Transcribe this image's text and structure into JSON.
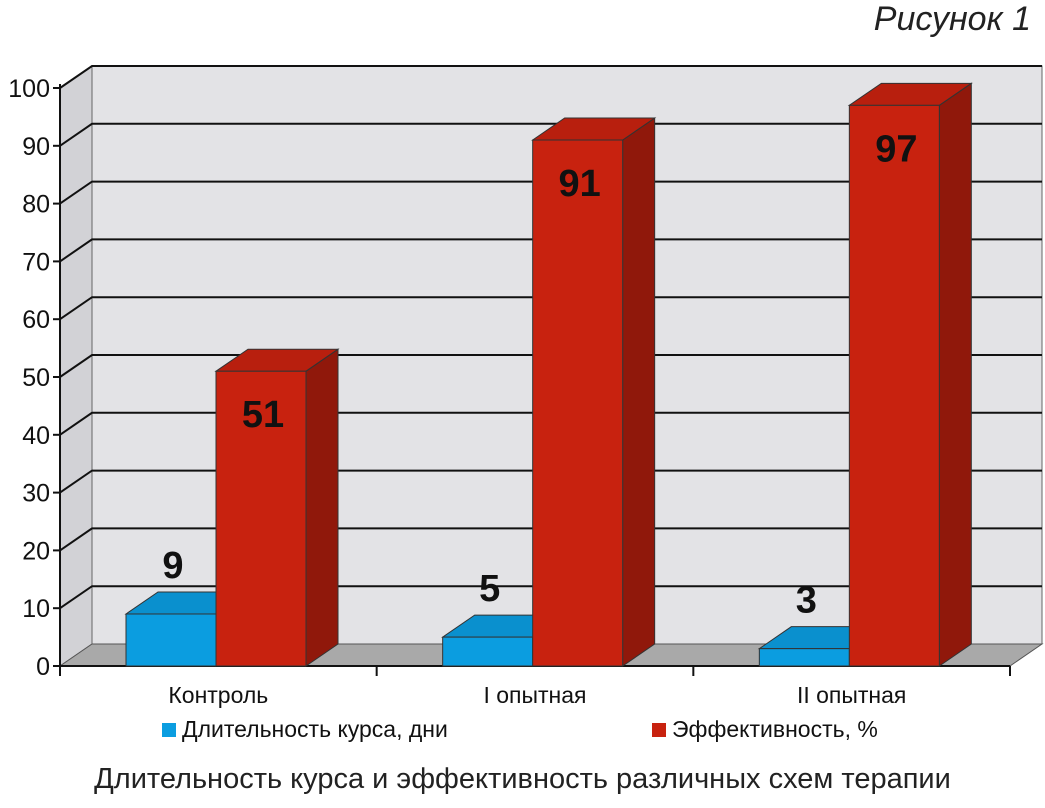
{
  "figure_label": "Рисунок 1",
  "caption": "Длительность курса и эффективность различных схем терапии",
  "colors": {
    "series_1": "#0b9de0",
    "series_2": "#c8220f",
    "wall": "#e3e3e6",
    "floor": "#a9a9a9"
  },
  "chart_data": {
    "type": "bar",
    "title": "",
    "xlabel": "",
    "ylabel": "",
    "ylim": [
      0,
      100
    ],
    "yticks": [
      "0",
      "10",
      "20",
      "30",
      "40",
      "50",
      "60",
      "70",
      "80",
      "90",
      "100"
    ],
    "categories": [
      "Контроль",
      "I опытная",
      "II опытная"
    ],
    "grid": true,
    "legend_position": "bottom",
    "series": [
      {
        "name": "Длительность курса, дни",
        "values": [
          9,
          5,
          3
        ],
        "labels": [
          "9",
          "5",
          "3"
        ]
      },
      {
        "name": "Эффективность, %",
        "values": [
          51,
          91,
          97
        ],
        "labels": [
          "51",
          "91",
          "97"
        ]
      }
    ]
  }
}
